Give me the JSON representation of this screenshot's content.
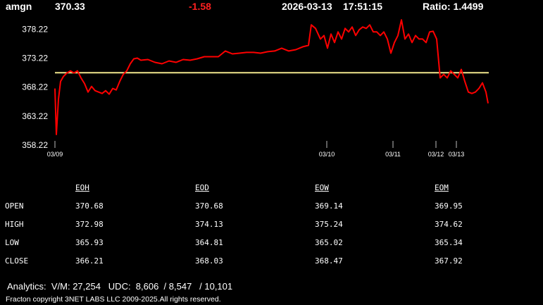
{
  "header": {
    "symbol": "amgn",
    "price": "370.33",
    "change": "-1.58",
    "date": "2026-03-13",
    "time": "17:51:15",
    "ratio": "Ratio: 1.4499"
  },
  "chart_data": {
    "type": "line",
    "x": [
      0,
      2,
      5,
      8,
      12,
      17,
      22,
      27,
      32,
      37,
      42,
      47,
      52,
      57,
      62,
      67,
      72,
      77,
      82,
      87,
      92,
      97,
      102,
      107,
      112,
      117,
      122,
      132,
      142,
      152,
      162,
      172,
      182,
      192,
      202,
      212,
      222,
      232,
      242,
      252,
      262,
      272,
      282,
      292,
      302,
      312,
      322,
      332,
      342,
      352,
      360,
      364,
      370,
      377,
      382,
      387,
      392,
      397,
      402,
      407,
      412,
      417,
      422,
      427,
      432,
      437,
      442,
      447,
      452,
      457,
      462,
      467,
      472,
      477,
      482,
      487,
      492,
      497,
      502,
      507,
      512,
      517,
      522,
      527,
      532,
      537,
      542,
      547,
      552,
      557,
      562,
      567,
      572,
      577,
      582,
      587,
      592,
      597,
      602,
      607,
      612,
      615
    ],
    "series": [
      {
        "color": "#ff0000",
        "values": [
          367.98,
          360.05,
          366.15,
          369.2,
          370.05,
          370.66,
          371.02,
          370.66,
          371.02,
          369.8,
          368.83,
          367.37,
          368.34,
          367.61,
          367.37,
          367.12,
          367.61,
          367.0,
          367.98,
          367.73,
          369.2,
          370.41,
          371.02,
          372.24,
          373.1,
          373.22,
          372.85,
          372.98,
          372.49,
          372.24,
          372.73,
          372.49,
          372.98,
          372.85,
          373.1,
          373.46,
          373.46,
          373.46,
          374.44,
          373.95,
          374.07,
          374.2,
          374.2,
          374.07,
          374.32,
          374.44,
          374.93,
          374.44,
          374.68,
          375.17,
          375.41,
          378.95,
          378.34,
          376.51,
          377.12,
          374.93,
          377.37,
          375.9,
          377.73,
          376.51,
          378.34,
          377.73,
          378.59,
          377.12,
          378.1,
          378.59,
          378.34,
          378.95,
          377.73,
          377.73,
          377.12,
          377.73,
          376.51,
          374.07,
          375.9,
          377.12,
          379.81,
          376.51,
          377.37,
          375.9,
          377.12,
          376.51,
          376.51,
          375.9,
          377.73,
          377.85,
          376.51,
          369.8,
          370.41,
          369.8,
          371.02,
          370.41,
          369.8,
          371.27,
          369.2,
          367.37,
          367.12,
          367.37,
          367.98,
          368.95,
          367.37,
          365.42
        ]
      }
    ],
    "reference_line": {
      "value": 370.7,
      "color": "#f0e68c"
    },
    "xlim": [
      0,
      615
    ],
    "xticks": [
      {
        "value": 0,
        "label": "03/09"
      },
      {
        "value": 386,
        "label": "03/10"
      },
      {
        "value": 480,
        "label": "03/11"
      },
      {
        "value": 541,
        "label": "03/12"
      },
      {
        "value": 570,
        "label": "03/13"
      }
    ],
    "ylim": [
      358.22,
      380.2
    ],
    "yticks": [
      358.22,
      363.22,
      368.22,
      373.22,
      378.22
    ]
  },
  "table": {
    "columns": [
      "EOH",
      "EOD",
      "EOW",
      "EOM"
    ],
    "rows": [
      {
        "label": "OPEN",
        "values": [
          "370.68",
          "370.68",
          "369.14",
          "369.95"
        ]
      },
      {
        "label": "HIGH",
        "values": [
          "372.98",
          "374.13",
          "375.24",
          "374.62"
        ]
      },
      {
        "label": "LOW",
        "values": [
          "365.93",
          "364.81",
          "365.02",
          "365.34"
        ]
      },
      {
        "label": "CLOSE",
        "values": [
          "366.21",
          "368.03",
          "368.47",
          "367.92"
        ]
      }
    ]
  },
  "footer": {
    "analytics": "Analytics:  V/M: 27,254   UDC:  8,606  / 8,547   / 10,101",
    "copyright": "Fracton copyright 3NET LABS LLC 2009-2025.All rights reserved."
  }
}
